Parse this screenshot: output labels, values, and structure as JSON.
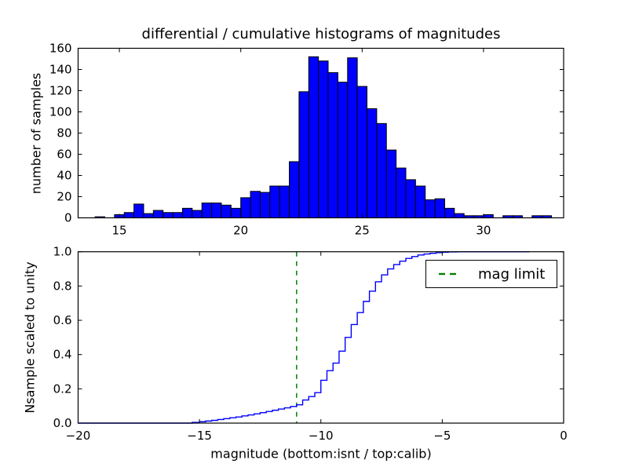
{
  "chart_data": [
    {
      "type": "bar",
      "title": "differential / cumulative histograms of magnitudes",
      "ylabel": "number of samples",
      "xlabel": "",
      "xlim": [
        13.3,
        33.3
      ],
      "ylim": [
        0,
        160
      ],
      "grid": false,
      "xticks": [
        {
          "value": 15,
          "label": "15"
        },
        {
          "value": 20,
          "label": "20"
        },
        {
          "value": 25,
          "label": "25"
        },
        {
          "value": 30,
          "label": "30"
        }
      ],
      "yticks": [
        {
          "value": 0,
          "label": "0"
        },
        {
          "value": 20,
          "label": "20"
        },
        {
          "value": 40,
          "label": "40"
        },
        {
          "value": 60,
          "label": "60"
        },
        {
          "value": 80,
          "label": "80"
        },
        {
          "value": 100,
          "label": "100"
        },
        {
          "value": 120,
          "label": "120"
        },
        {
          "value": 140,
          "label": "140"
        },
        {
          "value": 160,
          "label": "160"
        }
      ],
      "bin_start": 14.0,
      "bin_width": 0.4,
      "counts": [
        1,
        0,
        3,
        5,
        13,
        4,
        7,
        5,
        5,
        9,
        7,
        14,
        14,
        12,
        9,
        19,
        25,
        24,
        30,
        30,
        53,
        119,
        152,
        148,
        137,
        128,
        151,
        124,
        103,
        89,
        64,
        47,
        36,
        30,
        17,
        18,
        9,
        4,
        2,
        2,
        3,
        0,
        2,
        2,
        0,
        2,
        2
      ],
      "bar_fill": "#0000ff",
      "bar_edge": "#000000"
    },
    {
      "type": "line",
      "title": "",
      "ylabel": "Nsample scaled to unity",
      "xlabel": "magnitude (bottom:isnt / top:calib)",
      "xlim": [
        -20,
        0
      ],
      "ylim": [
        0.0,
        1.0
      ],
      "grid": false,
      "xticks": [
        {
          "value": -20,
          "label": "−20"
        },
        {
          "value": -15,
          "label": "−15"
        },
        {
          "value": -10,
          "label": "−10"
        },
        {
          "value": -5,
          "label": "−5"
        },
        {
          "value": 0,
          "label": "0"
        }
      ],
      "yticks": [
        {
          "value": 0.0,
          "label": "0.0"
        },
        {
          "value": 0.2,
          "label": "0.2"
        },
        {
          "value": 0.4,
          "label": "0.4"
        },
        {
          "value": 0.6,
          "label": "0.6"
        },
        {
          "value": 0.8,
          "label": "0.8"
        },
        {
          "value": 1.0,
          "label": "1.0"
        }
      ],
      "line_color": "#0000ff",
      "cumulative_points": [
        [
          -20.0,
          0.0
        ],
        [
          -15.3,
          0.004
        ],
        [
          -15.0,
          0.008
        ],
        [
          -14.75,
          0.012
        ],
        [
          -14.5,
          0.016
        ],
        [
          -14.25,
          0.021
        ],
        [
          -14.0,
          0.026
        ],
        [
          -13.75,
          0.031
        ],
        [
          -13.5,
          0.036
        ],
        [
          -13.25,
          0.042
        ],
        [
          -13.0,
          0.048
        ],
        [
          -12.75,
          0.054
        ],
        [
          -12.5,
          0.061
        ],
        [
          -12.25,
          0.068
        ],
        [
          -12.0,
          0.075
        ],
        [
          -11.75,
          0.082
        ],
        [
          -11.5,
          0.089
        ],
        [
          -11.25,
          0.097
        ],
        [
          -11.0,
          0.107
        ],
        [
          -10.75,
          0.135
        ],
        [
          -10.5,
          0.155
        ],
        [
          -10.25,
          0.178
        ],
        [
          -10.0,
          0.25
        ],
        [
          -9.75,
          0.306
        ],
        [
          -9.5,
          0.35
        ],
        [
          -9.25,
          0.42
        ],
        [
          -9.0,
          0.5
        ],
        [
          -8.75,
          0.575
        ],
        [
          -8.5,
          0.645
        ],
        [
          -8.25,
          0.71
        ],
        [
          -8.0,
          0.77
        ],
        [
          -7.75,
          0.825
        ],
        [
          -7.5,
          0.865
        ],
        [
          -7.25,
          0.9
        ],
        [
          -7.0,
          0.925
        ],
        [
          -6.75,
          0.945
        ],
        [
          -6.5,
          0.961
        ],
        [
          -6.25,
          0.972
        ],
        [
          -6.0,
          0.981
        ],
        [
          -5.75,
          0.987
        ],
        [
          -5.5,
          0.991
        ],
        [
          -5.25,
          0.995
        ],
        [
          -5.0,
          0.997
        ],
        [
          -4.75,
          0.999
        ],
        [
          -4.4,
          1.0
        ],
        [
          -1.4,
          1.0
        ]
      ],
      "mag_limit_line": {
        "x": -11,
        "color": "#008000",
        "style": "dashed"
      },
      "legend": {
        "label": "mag limit",
        "dash_color": "#008000",
        "position": "upper right"
      }
    }
  ]
}
